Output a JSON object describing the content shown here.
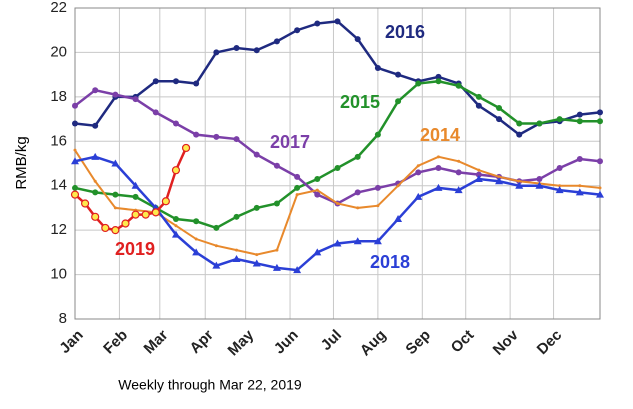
{
  "chart_data": {
    "type": "line",
    "x_label": "Weekly through Mar 22, 2019",
    "y_label": "RMB/kg",
    "xlim": [
      1,
      53
    ],
    "xticks": [
      {
        "value": 1,
        "label": "Jan"
      },
      {
        "value": 5.4,
        "label": "Feb"
      },
      {
        "value": 9.4,
        "label": "Mar"
      },
      {
        "value": 13.9,
        "label": "Apr"
      },
      {
        "value": 17.9,
        "label": "May"
      },
      {
        "value": 22.3,
        "label": "Jun"
      },
      {
        "value": 26.6,
        "label": "Jul"
      },
      {
        "value": 31,
        "label": "Aug"
      },
      {
        "value": 35.4,
        "label": "Sep"
      },
      {
        "value": 39.7,
        "label": "Oct"
      },
      {
        "value": 44.1,
        "label": "Nov"
      },
      {
        "value": 48.4,
        "label": "Dec"
      }
    ],
    "ylim": [
      8,
      22
    ],
    "yticks": [
      8,
      10,
      12,
      14,
      16,
      18,
      20,
      22
    ],
    "grid": true,
    "series": [
      {
        "name": "2016",
        "color": "#1f2a80",
        "marker": "circle",
        "x": [
          1,
          3,
          5,
          7,
          9,
          11,
          13,
          15,
          17,
          19,
          21,
          23,
          25,
          27,
          29,
          31,
          33,
          35,
          37,
          39,
          41,
          43,
          45,
          47,
          49,
          51,
          53
        ],
        "values": [
          16.8,
          16.7,
          18.0,
          18.0,
          18.7,
          18.7,
          18.6,
          20.0,
          20.2,
          20.1,
          20.5,
          21.0,
          21.3,
          21.4,
          20.6,
          19.3,
          19.0,
          18.7,
          18.9,
          18.6,
          17.6,
          17.0,
          16.3,
          16.8,
          16.9,
          17.2,
          17.3
        ]
      },
      {
        "name": "2015",
        "color": "#22912a",
        "marker": "circle",
        "x": [
          1,
          3,
          5,
          7,
          9,
          11,
          13,
          15,
          17,
          19,
          21,
          23,
          25,
          27,
          29,
          31,
          33,
          35,
          37,
          39,
          41,
          43,
          45,
          47,
          49,
          51,
          53
        ],
        "values": [
          13.9,
          13.7,
          13.6,
          13.5,
          13.0,
          12.5,
          12.4,
          12.1,
          12.6,
          13.0,
          13.2,
          13.9,
          14.3,
          14.8,
          15.3,
          16.3,
          17.8,
          18.6,
          18.7,
          18.5,
          18.0,
          17.5,
          16.8,
          16.8,
          17.0,
          16.9,
          16.9
        ]
      },
      {
        "name": "2017",
        "color": "#7b3fa8",
        "marker": "circle",
        "x": [
          1,
          3,
          5,
          7,
          9,
          11,
          13,
          15,
          17,
          19,
          21,
          23,
          25,
          27,
          29,
          31,
          33,
          35,
          37,
          39,
          41,
          43,
          45,
          47,
          49,
          51,
          53
        ],
        "values": [
          17.6,
          18.3,
          18.1,
          17.9,
          17.3,
          16.8,
          16.3,
          16.2,
          16.1,
          15.4,
          14.9,
          14.4,
          13.6,
          13.2,
          13.7,
          13.9,
          14.1,
          14.6,
          14.8,
          14.6,
          14.5,
          14.4,
          14.2,
          14.3,
          14.8,
          15.2,
          15.1
        ]
      },
      {
        "name": "2014",
        "color": "#e8892c",
        "marker": "dot",
        "x": [
          1,
          3,
          5,
          7,
          9,
          11,
          13,
          15,
          17,
          19,
          21,
          23,
          25,
          27,
          29,
          31,
          33,
          35,
          37,
          39,
          41,
          43,
          45,
          47,
          49,
          51,
          53
        ],
        "values": [
          15.6,
          14.2,
          13.0,
          12.9,
          12.8,
          12.2,
          11.6,
          11.3,
          11.1,
          10.9,
          11.1,
          13.6,
          13.8,
          13.2,
          13.0,
          13.1,
          14.0,
          14.9,
          15.3,
          15.1,
          14.7,
          14.4,
          14.2,
          14.1,
          14.0,
          14.0,
          13.9
        ]
      },
      {
        "name": "2018",
        "color": "#2b3fd6",
        "marker": "triangle",
        "x": [
          1,
          3,
          5,
          7,
          9,
          11,
          13,
          15,
          17,
          19,
          21,
          23,
          25,
          27,
          29,
          31,
          33,
          35,
          37,
          39,
          41,
          43,
          45,
          47,
          49,
          51,
          53
        ],
        "values": [
          15.1,
          15.3,
          15.0,
          14.0,
          13.0,
          11.8,
          11.0,
          10.4,
          10.7,
          10.5,
          10.3,
          10.2,
          11.0,
          11.4,
          11.5,
          11.5,
          12.5,
          13.5,
          13.9,
          13.8,
          14.3,
          14.2,
          14.0,
          14.0,
          13.8,
          13.7,
          13.6
        ]
      },
      {
        "name": "2019",
        "color": "#e02020",
        "marker": "yellow",
        "x": [
          1,
          2,
          3,
          4,
          5,
          6,
          7,
          8,
          9,
          10,
          11,
          12
        ],
        "values": [
          13.6,
          13.2,
          12.6,
          12.1,
          12.0,
          12.3,
          12.7,
          12.7,
          12.8,
          13.3,
          14.7,
          15.7
        ]
      }
    ]
  }
}
